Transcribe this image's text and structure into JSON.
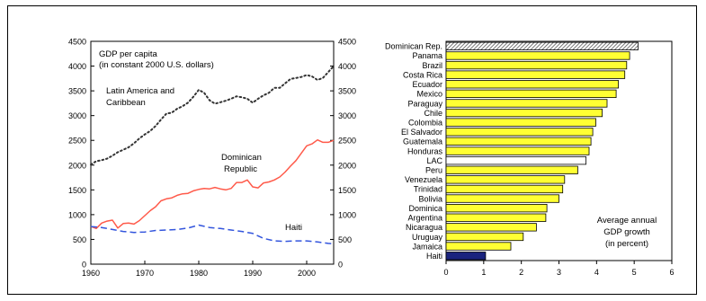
{
  "chart_data": [
    {
      "type": "line",
      "annotations": {
        "title_line1": "GDP per capita",
        "title_line2": "(in constant 2000 U.S. dollars)",
        "lac_line1": "Latin America and",
        "lac_line2": "Caribbean",
        "dr_line1": "Dominican",
        "dr_line2": "Republic",
        "haiti": "Haiti"
      },
      "xlim": [
        1960,
        2005
      ],
      "ylim": [
        0,
        4500
      ],
      "x_ticks": [
        "1960",
        "1970",
        "1980",
        "1990",
        "2000"
      ],
      "y_ticks": [
        "0",
        "500",
        "1000",
        "1500",
        "2000",
        "2500",
        "3000",
        "3500",
        "4000",
        "4500"
      ],
      "secondary_y_axis": true,
      "grid": false,
      "series": [
        {
          "key": "lac",
          "color": "#333333",
          "dash": "dotted",
          "points": [
            [
              1960,
              2010
            ],
            [
              1961,
              2080
            ],
            [
              1962,
              2100
            ],
            [
              1963,
              2130
            ],
            [
              1964,
              2190
            ],
            [
              1965,
              2260
            ],
            [
              1966,
              2310
            ],
            [
              1967,
              2360
            ],
            [
              1968,
              2440
            ],
            [
              1969,
              2540
            ],
            [
              1970,
              2620
            ],
            [
              1971,
              2690
            ],
            [
              1972,
              2790
            ],
            [
              1973,
              2920
            ],
            [
              1974,
              3040
            ],
            [
              1975,
              3060
            ],
            [
              1976,
              3140
            ],
            [
              1977,
              3190
            ],
            [
              1978,
              3260
            ],
            [
              1979,
              3380
            ],
            [
              1980,
              3520
            ],
            [
              1981,
              3460
            ],
            [
              1982,
              3310
            ],
            [
              1983,
              3240
            ],
            [
              1984,
              3270
            ],
            [
              1985,
              3300
            ],
            [
              1986,
              3340
            ],
            [
              1987,
              3390
            ],
            [
              1988,
              3370
            ],
            [
              1989,
              3340
            ],
            [
              1990,
              3260
            ],
            [
              1991,
              3340
            ],
            [
              1992,
              3410
            ],
            [
              1993,
              3460
            ],
            [
              1994,
              3560
            ],
            [
              1995,
              3560
            ],
            [
              1996,
              3650
            ],
            [
              1997,
              3740
            ],
            [
              1998,
              3760
            ],
            [
              1999,
              3780
            ],
            [
              2000,
              3820
            ],
            [
              2001,
              3790
            ],
            [
              2002,
              3720
            ],
            [
              2003,
              3760
            ],
            [
              2004,
              3880
            ],
            [
              2005,
              4000
            ]
          ]
        },
        {
          "key": "dr",
          "color": "#ff5a4a",
          "dash": "solid",
          "points": [
            [
              1960,
              760
            ],
            [
              1961,
              720
            ],
            [
              1962,
              830
            ],
            [
              1963,
              870
            ],
            [
              1964,
              890
            ],
            [
              1965,
              730
            ],
            [
              1966,
              820
            ],
            [
              1967,
              830
            ],
            [
              1968,
              810
            ],
            [
              1969,
              880
            ],
            [
              1970,
              980
            ],
            [
              1971,
              1080
            ],
            [
              1972,
              1160
            ],
            [
              1973,
              1280
            ],
            [
              1974,
              1320
            ],
            [
              1975,
              1340
            ],
            [
              1976,
              1390
            ],
            [
              1977,
              1420
            ],
            [
              1978,
              1430
            ],
            [
              1979,
              1480
            ],
            [
              1980,
              1510
            ],
            [
              1981,
              1530
            ],
            [
              1982,
              1520
            ],
            [
              1983,
              1550
            ],
            [
              1984,
              1520
            ],
            [
              1985,
              1500
            ],
            [
              1986,
              1530
            ],
            [
              1987,
              1650
            ],
            [
              1988,
              1650
            ],
            [
              1989,
              1700
            ],
            [
              1990,
              1560
            ],
            [
              1991,
              1540
            ],
            [
              1992,
              1640
            ],
            [
              1993,
              1660
            ],
            [
              1994,
              1700
            ],
            [
              1995,
              1760
            ],
            [
              1996,
              1860
            ],
            [
              1997,
              1980
            ],
            [
              1998,
              2090
            ],
            [
              1999,
              2240
            ],
            [
              2000,
              2390
            ],
            [
              2001,
              2430
            ],
            [
              2002,
              2510
            ],
            [
              2003,
              2460
            ],
            [
              2004,
              2460
            ],
            [
              2005,
              2500
            ]
          ]
        },
        {
          "key": "haiti",
          "color": "#3355dd",
          "dash": "dashed",
          "points": [
            [
              1960,
              760
            ],
            [
              1962,
              740
            ],
            [
              1964,
              700
            ],
            [
              1966,
              660
            ],
            [
              1968,
              640
            ],
            [
              1970,
              650
            ],
            [
              1972,
              680
            ],
            [
              1974,
              690
            ],
            [
              1976,
              700
            ],
            [
              1978,
              730
            ],
            [
              1980,
              790
            ],
            [
              1982,
              740
            ],
            [
              1984,
              720
            ],
            [
              1986,
              690
            ],
            [
              1988,
              660
            ],
            [
              1990,
              620
            ],
            [
              1992,
              520
            ],
            [
              1994,
              470
            ],
            [
              1996,
              460
            ],
            [
              1998,
              470
            ],
            [
              2000,
              470
            ],
            [
              2002,
              450
            ],
            [
              2004,
              420
            ],
            [
              2005,
              410
            ]
          ]
        }
      ]
    },
    {
      "type": "bar",
      "orientation": "horizontal",
      "annotation_line1": "Average annual",
      "annotation_line2": "GDP growth",
      "annotation_line3": "(in percent)",
      "xlim": [
        0,
        6
      ],
      "x_ticks": [
        "0",
        "1",
        "2",
        "3",
        "4",
        "5",
        "6"
      ],
      "categories": [
        "Dominican Rep.",
        "Panama",
        "Brazil",
        "Costa Rica",
        "Ecuador",
        "Mexico",
        "Paraguay",
        "Chile",
        "Colombia",
        "El Salvador",
        "Guatemala",
        "Honduras",
        "LAC",
        "Peru",
        "Venezuela",
        "Trinidad",
        "Bolivia",
        "Dominica",
        "Argentina",
        "Nicaragua",
        "Uruguay",
        "Jamaica",
        "Haiti"
      ],
      "values": [
        5.1,
        4.88,
        4.8,
        4.75,
        4.58,
        4.52,
        4.28,
        4.15,
        3.98,
        3.9,
        3.85,
        3.8,
        3.72,
        3.5,
        3.15,
        3.1,
        3.0,
        2.68,
        2.65,
        2.4,
        2.05,
        1.72,
        1.05
      ],
      "bar_styles": [
        "hatched",
        "yellow",
        "yellow",
        "yellow",
        "yellow",
        "yellow",
        "yellow",
        "yellow",
        "yellow",
        "yellow",
        "yellow",
        "yellow",
        "white",
        "yellow",
        "yellow",
        "yellow",
        "yellow",
        "yellow",
        "yellow",
        "yellow",
        "yellow",
        "yellow",
        "navy"
      ],
      "colors": {
        "yellow": "#ffff33",
        "white": "#ffffff",
        "navy": "#1a237e",
        "hatched": "#999999"
      }
    }
  ]
}
